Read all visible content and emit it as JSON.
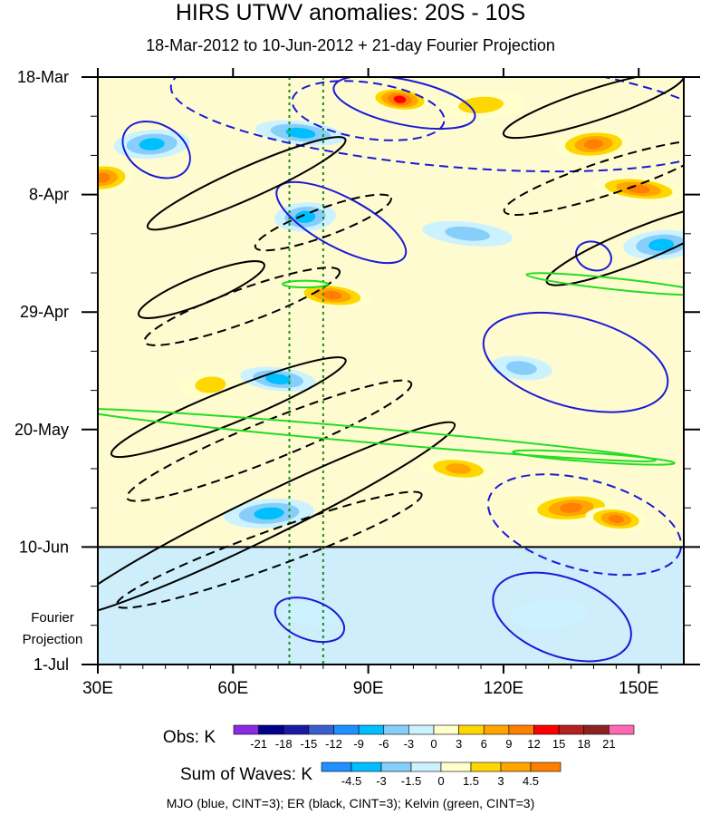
{
  "chart_data": {
    "type": "heatmap",
    "title": "HIRS UTWV anomalies: 20S - 10S",
    "subtitle": "18-Mar-2012 to 10-Jun-2012 + 21-day Fourier Projection",
    "x_ticks": [
      {
        "value": 30,
        "label": "30E"
      },
      {
        "value": 60,
        "label": "60E"
      },
      {
        "value": 90,
        "label": "90E"
      },
      {
        "value": 120,
        "label": "120E"
      },
      {
        "value": 150,
        "label": "150E"
      }
    ],
    "xlim": [
      30,
      160
    ],
    "y_ticks": [
      {
        "day": 0,
        "label": "18-Mar"
      },
      {
        "day": 21,
        "label": "8-Apr"
      },
      {
        "day": 42,
        "label": "29-Apr"
      },
      {
        "day": 63,
        "label": "20-May"
      },
      {
        "day": 84,
        "label": "10-Jun"
      },
      {
        "day": 105,
        "label": "1-Jul"
      }
    ],
    "ylim_days": [
      0,
      105
    ],
    "observation_end_day": 84,
    "projection_label": "Fourier Projection",
    "reference_lines_lon": [
      72.5,
      80
    ],
    "obs_colorbar": {
      "label": "Obs: K",
      "ticks": [
        "-21",
        "-18",
        "-15",
        "-12",
        "-9",
        "-6",
        "-3",
        "0",
        "3",
        "6",
        "9",
        "12",
        "15",
        "18",
        "21"
      ],
      "colors": [
        "#8a2be2",
        "#00008b",
        "#1a1aa6",
        "#3a5fcd",
        "#1e90ff",
        "#00bfff",
        "#87cefa",
        "#ccf2ff",
        "#ffffcc",
        "#ffd700",
        "#ffa500",
        "#ff7f00",
        "#ff0000",
        "#b22222",
        "#8b2323",
        "#ff69b4"
      ]
    },
    "waves_colorbar": {
      "label": "Sum of Waves: K",
      "ticks": [
        "-4.5",
        "-3",
        "-1.5",
        "0",
        "1.5",
        "3",
        "4.5"
      ],
      "colors": [
        "#1e90ff",
        "#00bfff",
        "#87cefa",
        "#ccf2ff",
        "#ffffcc",
        "#ffd700",
        "#ffa500",
        "#ff7f00"
      ]
    },
    "field_features": [
      {
        "lon": 97,
        "day": 4,
        "value": 14
      },
      {
        "lon": 140,
        "day": 12,
        "value": 13
      },
      {
        "lon": 150,
        "day": 20,
        "value": 12
      },
      {
        "lon": 31,
        "day": 18,
        "value": 12
      },
      {
        "lon": 82,
        "day": 39,
        "value": 13
      },
      {
        "lon": 135,
        "day": 77,
        "value": 11
      },
      {
        "lon": 145,
        "day": 79,
        "value": 12
      },
      {
        "lon": 42,
        "day": 12,
        "value": -9
      },
      {
        "lon": 75,
        "day": 10,
        "value": -8
      },
      {
        "lon": 76,
        "day": 25,
        "value": -8
      },
      {
        "lon": 70,
        "day": 54,
        "value": -8
      },
      {
        "lon": 68,
        "day": 78,
        "value": -8
      },
      {
        "lon": 124,
        "day": 52,
        "value": -7
      },
      {
        "lon": 155,
        "day": 30,
        "value": -9
      },
      {
        "lon": 112,
        "day": 28,
        "value": -7
      },
      {
        "lon": 55,
        "day": 55,
        "value": 7
      },
      {
        "lon": 110,
        "day": 70,
        "value": 8
      },
      {
        "lon": 115,
        "day": 5,
        "value": 6
      },
      {
        "lon": 78,
        "day": 96,
        "value": -3
      },
      {
        "lon": 130,
        "day": 96,
        "value": -4
      }
    ],
    "wave_contours": [
      {
        "wave": "MJO",
        "sign": "positive",
        "lon": 98,
        "day": 4.5,
        "rx": 16,
        "ry": 4,
        "angle": 12
      },
      {
        "wave": "MJO",
        "sign": "positive",
        "lon": 43,
        "day": 13,
        "rx": 8,
        "ry": 4.5,
        "angle": 30
      },
      {
        "wave": "MJO",
        "sign": "positive",
        "lon": 84,
        "day": 26,
        "rx": 16,
        "ry": 4.5,
        "angle": 28
      },
      {
        "wave": "MJO",
        "sign": "positive",
        "lon": 136,
        "day": 51,
        "rx": 21,
        "ry": 8,
        "angle": 15
      },
      {
        "wave": "MJO",
        "sign": "positive",
        "lon": 77,
        "day": 97,
        "rx": 8,
        "ry": 3.5,
        "angle": 20
      },
      {
        "wave": "MJO",
        "sign": "positive",
        "lon": 133,
        "day": 96.5,
        "rx": 16,
        "ry": 7,
        "angle": 20
      },
      {
        "wave": "MJO",
        "sign": "positive",
        "lon": 140,
        "day": 32,
        "rx": 4,
        "ry": 2.5,
        "angle": 20
      },
      {
        "wave": "MJO",
        "sign": "negative",
        "lon": 108,
        "day": 6,
        "rx": 62,
        "ry": 10,
        "angle": 5
      },
      {
        "wave": "MJO",
        "sign": "negative",
        "lon": 90,
        "day": 6,
        "rx": 17,
        "ry": 5,
        "angle": 8
      },
      {
        "wave": "MJO",
        "sign": "negative",
        "lon": 138,
        "day": 80,
        "rx": 22,
        "ry": 8,
        "angle": 15
      },
      {
        "wave": "ER",
        "sign": "positive",
        "lon": 63,
        "day": 19,
        "rx": 24,
        "ry": 2.8,
        "angle": -24
      },
      {
        "wave": "ER",
        "sign": "positive",
        "lon": 53,
        "day": 38,
        "rx": 15,
        "ry": 2.5,
        "angle": -22
      },
      {
        "wave": "ER",
        "sign": "positive",
        "lon": 59,
        "day": 59,
        "rx": 28,
        "ry": 3,
        "angle": -22
      },
      {
        "wave": "ER",
        "sign": "positive",
        "lon": 66,
        "day": 79,
        "rx": 48,
        "ry": 3.8,
        "angle": -26
      },
      {
        "wave": "ER",
        "sign": "positive",
        "lon": 140,
        "day": 5,
        "rx": 21,
        "ry": 2.8,
        "angle": -18
      },
      {
        "wave": "ER",
        "sign": "positive",
        "lon": 150,
        "day": 30,
        "rx": 22,
        "ry": 3,
        "angle": -22
      },
      {
        "wave": "ER",
        "sign": "negative",
        "lon": 80,
        "day": 26,
        "rx": 16,
        "ry": 2.5,
        "angle": -20
      },
      {
        "wave": "ER",
        "sign": "negative",
        "lon": 62,
        "day": 41,
        "rx": 23,
        "ry": 3,
        "angle": -20
      },
      {
        "wave": "ER",
        "sign": "negative",
        "lon": 68,
        "day": 65,
        "rx": 34,
        "ry": 3.5,
        "angle": -22
      },
      {
        "wave": "ER",
        "sign": "negative",
        "lon": 68,
        "day": 84.5,
        "rx": 36,
        "ry": 3.2,
        "angle": -20
      },
      {
        "wave": "ER",
        "sign": "negative",
        "lon": 143,
        "day": 18,
        "rx": 24,
        "ry": 3,
        "angle": -18
      },
      {
        "wave": "Kelvin",
        "sign": "positive",
        "lon": 90,
        "day": 64,
        "rx": 64,
        "ry": 1.3,
        "angle": 5
      },
      {
        "wave": "Kelvin",
        "sign": "positive",
        "lon": 140,
        "day": 68,
        "rx": 18,
        "ry": 0.8,
        "angle": 4
      },
      {
        "wave": "Kelvin",
        "sign": "positive",
        "lon": 145,
        "day": 37,
        "rx": 20,
        "ry": 1,
        "angle": 6
      },
      {
        "wave": "Kelvin",
        "sign": "positive",
        "lon": 76,
        "day": 37,
        "rx": 5,
        "ry": 0.6,
        "angle": 0
      }
    ],
    "caption": "MJO (blue, CINT=3); ER (black, CINT=3); Kelvin (green, CINT=3)"
  }
}
